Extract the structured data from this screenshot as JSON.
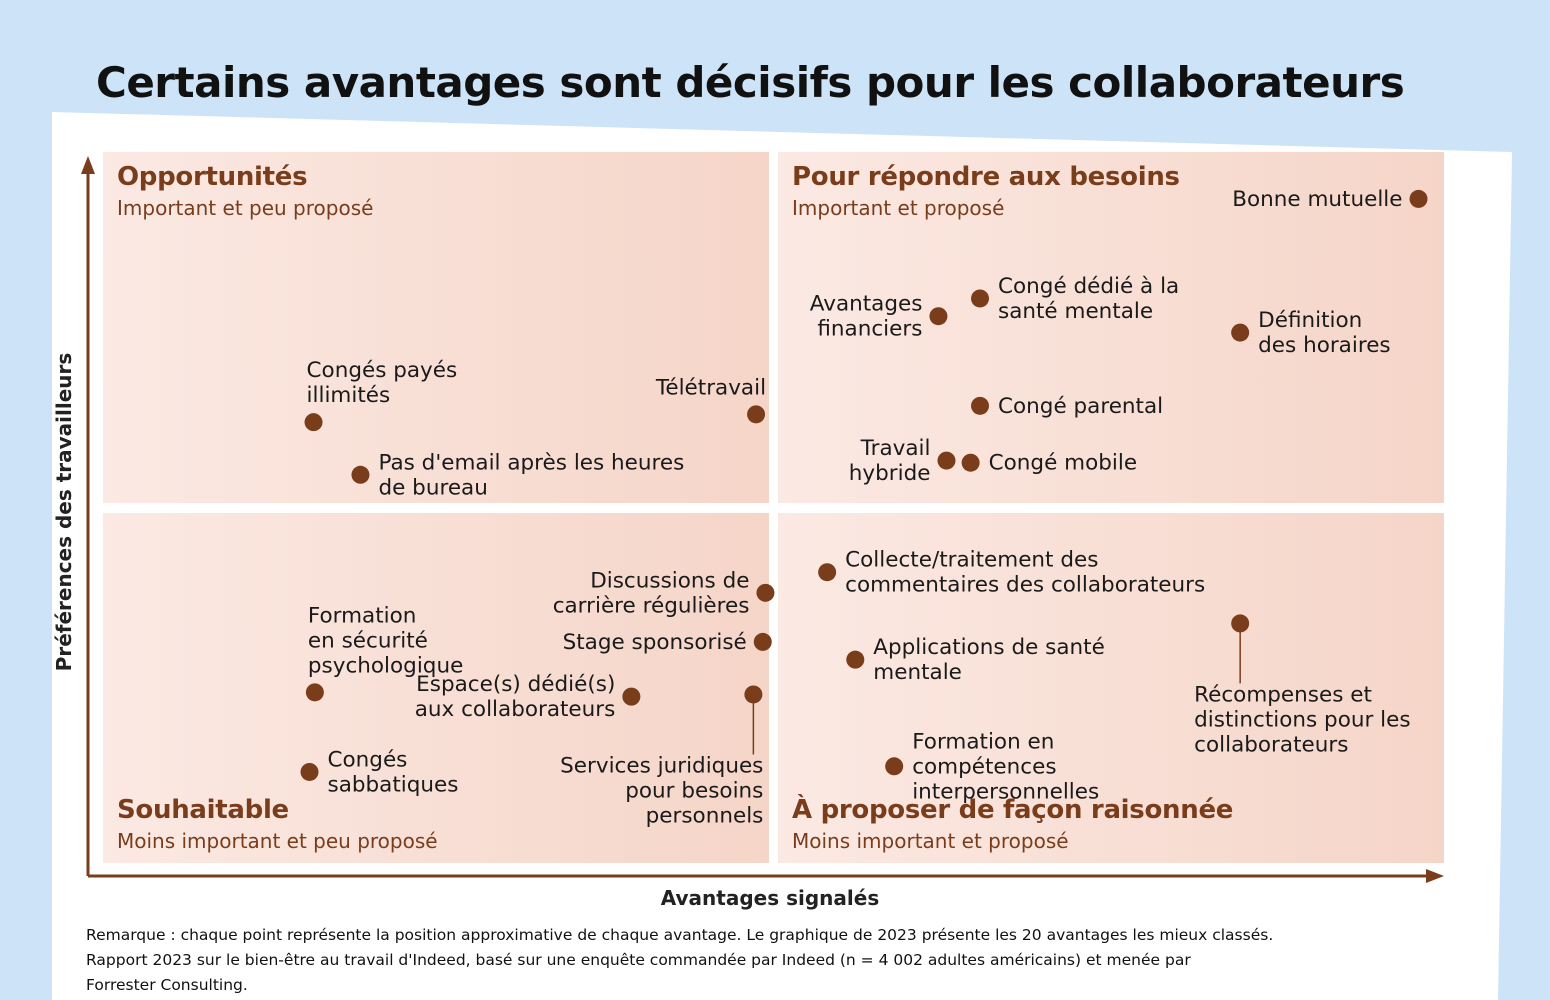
{
  "title": "Certains avantages sont décisifs pour les collaborateurs",
  "colors": {
    "background": "#cde4f8",
    "accent": "#7a3d1c",
    "point": "#7a3d1c",
    "quadrant_fill_light": "#fbe9e3",
    "quadrant_fill_dark": "#f5d5c8"
  },
  "notes": {
    "line1": "Remarque : chaque point représente la position approximative de chaque avantage. Le graphique de 2023 présente les 20 avantages les mieux classés.",
    "line2": "Rapport 2023 sur le bien-être au travail d'Indeed, basé sur une enquête commandée par Indeed (n = 4 002 adultes américains) et menée par",
    "line3": "Forrester Consulting."
  },
  "chart_data": {
    "type": "scatter",
    "title": "Certains avantages sont décisifs pour les collaborateurs",
    "xlabel": "Avantages signalés",
    "ylabel": "Préférences des travailleurs",
    "axis_ticks": "none",
    "xlim": [
      0,
      100
    ],
    "ylim": [
      0,
      100
    ],
    "grid": false,
    "legend": "none",
    "quadrants": [
      {
        "name": "Opportunités",
        "subtitle": "Important et peu proposé",
        "position": "top-left"
      },
      {
        "name": "Pour répondre aux besoins",
        "subtitle": "Important et proposé",
        "position": "top-right"
      },
      {
        "name": "Souhaitable",
        "subtitle": "Moins important et peu proposé",
        "position": "bottom-left"
      },
      {
        "name": "À proposer de façon raisonnée",
        "subtitle": "Moins important et proposé",
        "position": "bottom-right"
      }
    ],
    "points": [
      {
        "lines": [
          "Bonne mutuelle"
        ],
        "x": 98.1,
        "y": 93.4,
        "anchor": "left"
      },
      {
        "lines": [
          "Congé dédié à la",
          "santé mentale"
        ],
        "x": 65.4,
        "y": 79.4,
        "anchor": "right"
      },
      {
        "lines": [
          "Avantages",
          "financiers"
        ],
        "x": 62.3,
        "y": 76.9,
        "anchor": "left"
      },
      {
        "lines": [
          "Définition",
          "des horaires"
        ],
        "x": 84.8,
        "y": 74.6,
        "anchor": "right"
      },
      {
        "lines": [
          "Congé parental"
        ],
        "x": 65.4,
        "y": 64.3,
        "anchor": "right"
      },
      {
        "lines": [
          "Travail",
          "hybride"
        ],
        "x": 62.9,
        "y": 56.6,
        "anchor": "left"
      },
      {
        "lines": [
          "Congé mobile"
        ],
        "x": 64.7,
        "y": 56.3,
        "anchor": "right"
      },
      {
        "lines": [
          "Télétravail"
        ],
        "x": 48.7,
        "y": 63.1,
        "anchor": "top"
      },
      {
        "lines": [
          "Congés payés",
          "illimités"
        ],
        "x": 15.7,
        "y": 62.0,
        "anchor": "top"
      },
      {
        "lines": [
          "Pas d'email après les heures",
          "de bureau"
        ],
        "x": 19.2,
        "y": 54.6,
        "anchor": "right"
      },
      {
        "lines": [
          "Collecte/traitement des",
          "commentaires des collaborateurs"
        ],
        "x": 54.0,
        "y": 40.9,
        "anchor": "right"
      },
      {
        "lines": [
          "Discussions de",
          "carrière régulières"
        ],
        "x": 49.4,
        "y": 38.0,
        "anchor": "left"
      },
      {
        "lines": [
          "Stage sponsorisé"
        ],
        "x": 49.2,
        "y": 31.1,
        "anchor": "left"
      },
      {
        "lines": [
          "Applications de santé",
          "mentale"
        ],
        "x": 56.1,
        "y": 28.6,
        "anchor": "right"
      },
      {
        "lines": [
          "Récompenses et",
          "distinctions pour les",
          "collaborateurs"
        ],
        "x": 84.8,
        "y": 33.7,
        "anchor": "below"
      },
      {
        "lines": [
          "Formation",
          "en sécurité",
          "psychologique"
        ],
        "x": 15.8,
        "y": 24.0,
        "anchor": "top"
      },
      {
        "lines": [
          "Espace(s) dédié(s)",
          "aux collaborateurs"
        ],
        "x": 39.4,
        "y": 23.4,
        "anchor": "left"
      },
      {
        "lines": [
          "Services juridiques",
          "pour besoins",
          "personnels"
        ],
        "x": 48.5,
        "y": 23.7,
        "anchor": "below"
      },
      {
        "lines": [
          "Formation en",
          "compétences",
          "interpersonnelles"
        ],
        "x": 59.0,
        "y": 13.6,
        "anchor": "right"
      },
      {
        "lines": [
          "Congés",
          "sabbatiques"
        ],
        "x": 15.4,
        "y": 12.8,
        "anchor": "right"
      }
    ]
  }
}
